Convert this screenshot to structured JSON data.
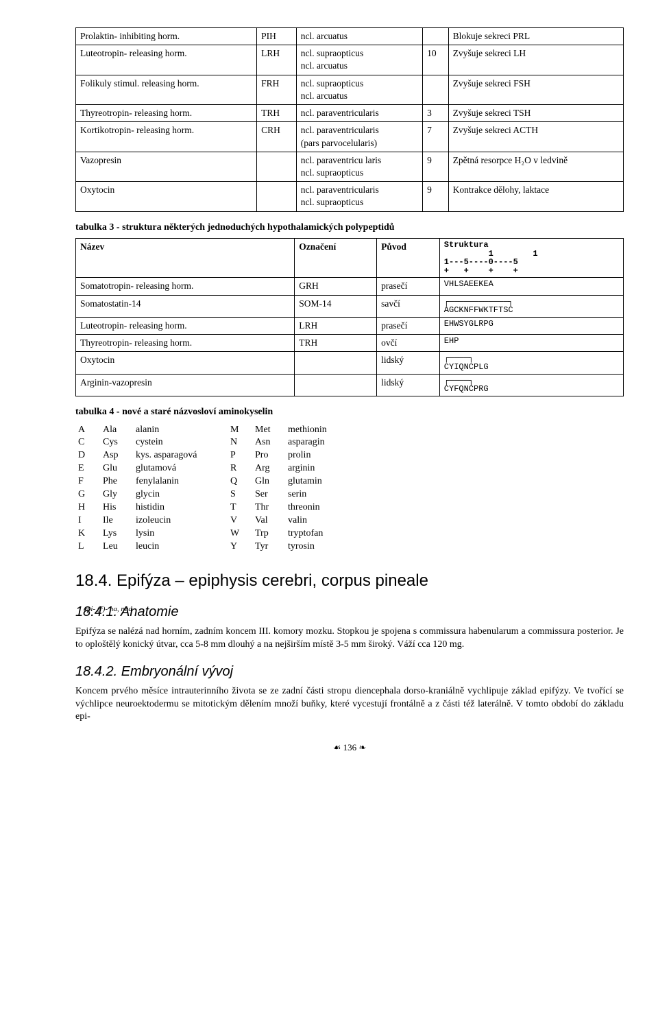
{
  "table1": {
    "rows": [
      [
        "Prolaktin- inhibiting horm.",
        "PIH",
        "ncl. arcuatus",
        "",
        "Blokuje sekreci PRL"
      ],
      [
        "Luteotropin- releasing horm.",
        "LRH",
        "ncl. supraopticus\nncl. arcuatus",
        "10",
        "Zvyšuje sekreci LH"
      ],
      [
        "Folikuly stimul. releasing horm.",
        "FRH",
        "ncl. supraopticus\nncl. arcuatus",
        "",
        "Zvyšuje sekreci FSH"
      ],
      [
        "Thyreotropin- releasing horm.",
        "TRH",
        "ncl. paraventricularis",
        "3",
        "Zvyšuje sekreci TSH"
      ],
      [
        "Kortikotropin- releasing horm.",
        "CRH",
        "ncl. paraventricularis\n  (pars parvocelularis)",
        "7",
        "Zvyšuje sekreci ACTH"
      ],
      [
        "Vazopresin",
        "",
        "ncl. paraventricu laris\nncl. supraopticus",
        "9",
        "Zpětná resorpce H₂O v ledvině"
      ],
      [
        "Oxytocin",
        "",
        "ncl. paraventricularis\nncl. supraopticus",
        "9",
        "Kontrakce dělohy, laktace"
      ]
    ]
  },
  "caption3": "tabulka 3 - struktura některých jednoduchých hypothalamických polypeptidů",
  "table3": {
    "header": [
      "Název",
      "Označení",
      "Původ"
    ],
    "struct_header": "Struktura\n         1        1\n1---5----0----5\n+   +    +    +",
    "rows": [
      [
        "Somatotropin- releasing horm.",
        "GRH",
        "prasečí",
        "VHLSAEEKEA"
      ],
      [
        "Somatostatin-14",
        "SOM-14",
        "savčí",
        "┌────────────┐\nAGCKNFFWKTFTSC"
      ],
      [
        "Luteotropin- releasing horm.",
        "LRH",
        "prasečí",
        "EHWSYGLRPG"
      ],
      [
        "Thyreotropin- releasing horm.",
        "TRH",
        "ovčí",
        "EHP"
      ],
      [
        "Oxytocin",
        "",
        "lidský",
        "┌────┐\nCYIQNCPLG"
      ],
      [
        "Arginin-vazopresin",
        "",
        "lidský",
        "┌────┐\nCYFQNCPRG"
      ]
    ]
  },
  "caption4": "tabulka 4 - nové a staré názvosloví aminokyselin",
  "aa": [
    [
      "A",
      "Ala",
      "alanin",
      "M",
      "Met",
      "methionin"
    ],
    [
      "C",
      "Cys",
      "cystein",
      "N",
      "Asn",
      "asparagin"
    ],
    [
      "D",
      "Asp",
      "kys. asparagová",
      "P",
      "Pro",
      "prolin"
    ],
    [
      "E",
      "Glu",
      "glutamová",
      "R",
      "Arg",
      "arginin"
    ],
    [
      "F",
      "Phe",
      "fenylalanin",
      "Q",
      "Gln",
      "glutamin"
    ],
    [
      "G",
      "Gly",
      "glycin",
      "S",
      "Ser",
      "serin"
    ],
    [
      "H",
      "His",
      "histidin",
      "T",
      "Thr",
      "threonin"
    ],
    [
      "I",
      "Ile",
      "izoleucin",
      "V",
      "Val",
      "valin"
    ],
    [
      "K",
      "Lys",
      "lysin",
      "W",
      "Trp",
      "tryptofan"
    ],
    [
      "L",
      "Leu",
      "leucin",
      "Y",
      "Tyr",
      "tyrosin"
    ]
  ],
  "h2": "18.4. Epifýza – epiphysis cerebri, corpus pineale",
  "h3a": "18.4.1. Anatomie",
  "margin1": "epi- (ř)- na, nad",
  "p1": "Epifýza se nalézá nad horním, zadním koncem III. komory mozku. Stopkou je spojena s commissura habenularum a commissura posterior. Je to oploštělý konický útvar, cca 5-8 mm dlouhý a na nejširším místě 3-5 mm široký. Váží cca 120 mg.",
  "h3b": "18.4.2. Embryonální vývoj",
  "p2": "Koncem prvého měsíce intrauterinního života se ze zadní části stropu diencephala dorso-kraniálně vychlipuje základ epifýzy. Ve tvořící se výchlipce neuroektodermu se mitotickým dělením množí buňky, které vycestují frontálně a z části též laterálně. V tomto období do základu epi-",
  "footer": "☙ 136 ❧"
}
